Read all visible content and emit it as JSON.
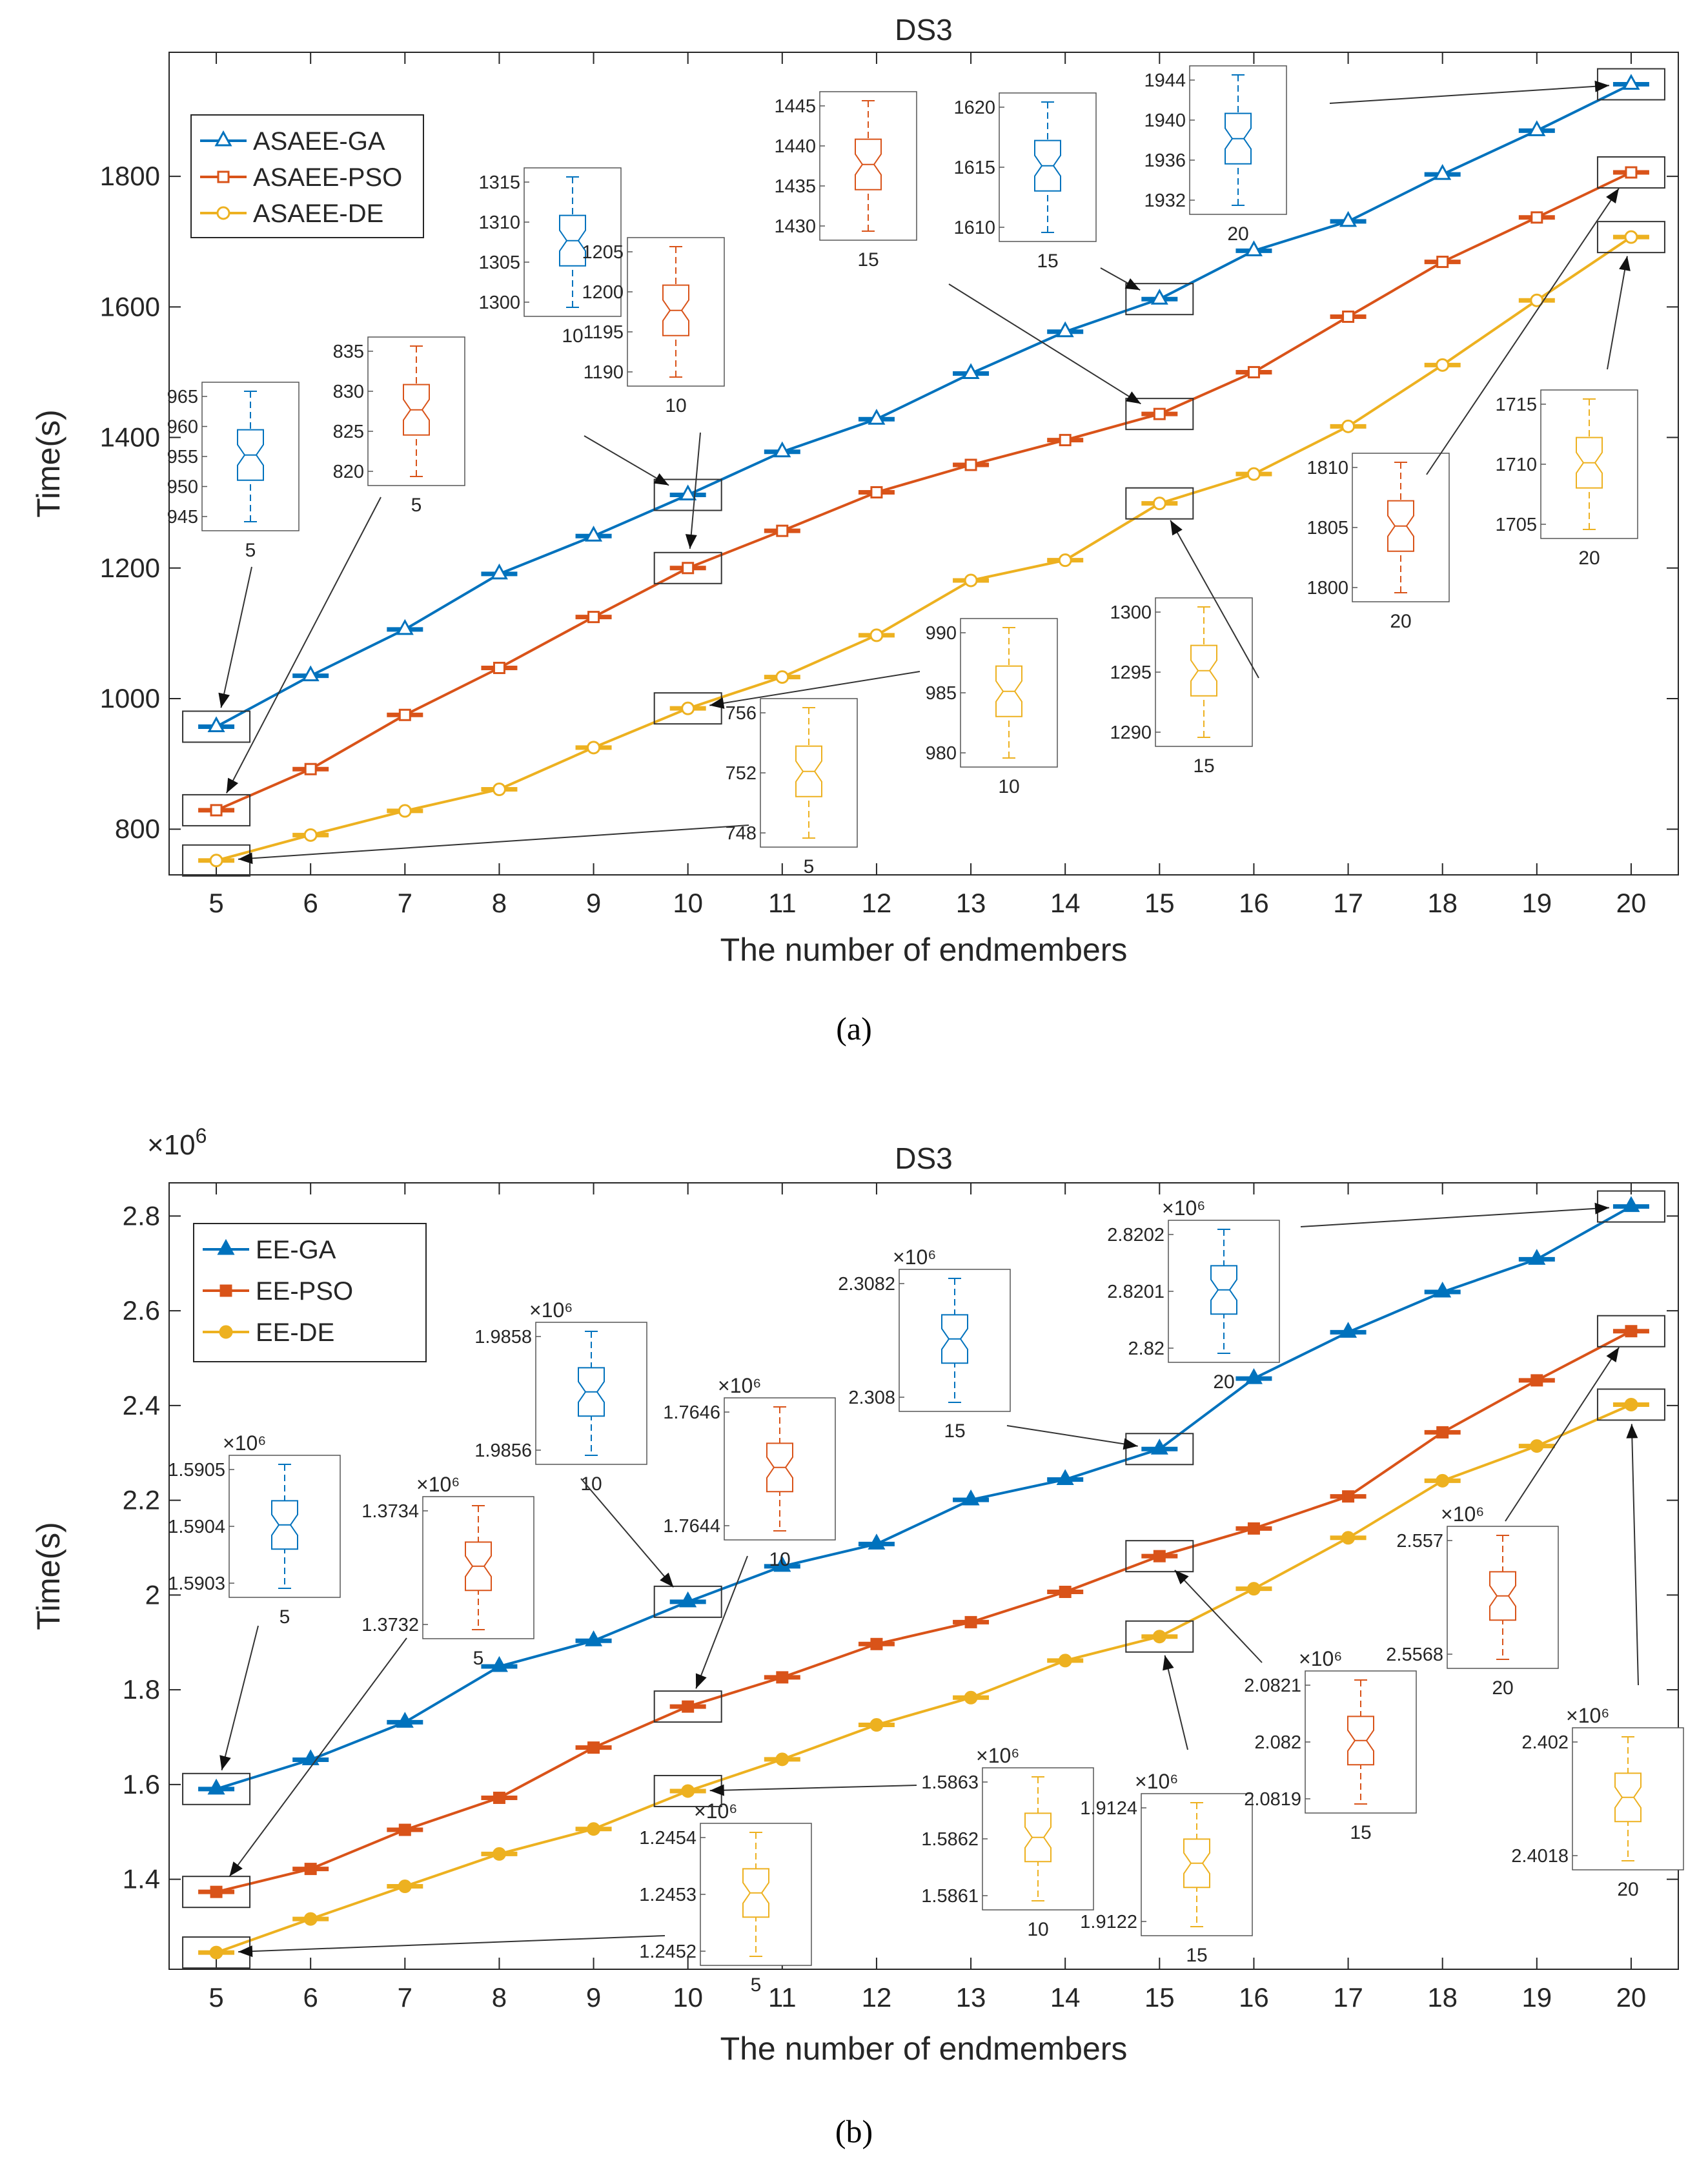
{
  "colors": {
    "s0": "#0072BD",
    "s1": "#D95319",
    "s2": "#EDB120",
    "axis": "#262626",
    "grid": "#DCDCDC"
  },
  "chart_data": [
    {
      "type": "line",
      "panel_label": "(a)",
      "title": "DS3",
      "xlabel": "The number of endmembers",
      "ylabel": "Time(s)",
      "exponent_label": "",
      "xlim": [
        4.5,
        20.5
      ],
      "ylim": [
        730,
        1990
      ],
      "yticks": [
        800,
        1000,
        1200,
        1400,
        1600,
        1800
      ],
      "ytick_labels": [
        "800",
        "1000",
        "1200",
        "1400",
        "1600",
        "1800"
      ],
      "x": [
        5,
        6,
        7,
        8,
        9,
        10,
        11,
        12,
        13,
        14,
        15,
        16,
        17,
        18,
        19,
        20
      ],
      "xtick_labels": [
        "5",
        "6",
        "7",
        "8",
        "9",
        "10",
        "11",
        "12",
        "13",
        "14",
        "15",
        "16",
        "17",
        "18",
        "19",
        "20"
      ],
      "legend_position": "top-left",
      "series": [
        {
          "name": "ASAEE-GA",
          "marker": "triangle",
          "values": [
            957,
            1035,
            1106,
            1191,
            1249,
            1312,
            1378,
            1428,
            1498,
            1562,
            1612,
            1686,
            1731,
            1803,
            1870,
            1941
          ]
        },
        {
          "name": "ASAEE-PSO",
          "marker": "square",
          "values": [
            829,
            892,
            975,
            1047,
            1125,
            1200,
            1257,
            1316,
            1358,
            1396,
            1436,
            1500,
            1585,
            1669,
            1737,
            1806
          ]
        },
        {
          "name": "ASAEE-DE",
          "marker": "circle",
          "values": [
            752,
            791,
            828,
            861,
            925,
            985,
            1033,
            1097,
            1181,
            1212,
            1299,
            1344,
            1417,
            1511,
            1610,
            1707
          ]
        }
      ],
      "insets": [
        {
          "series": 0,
          "x": 5,
          "label": "5",
          "ticks": [
            "965",
            "960",
            "955",
            "950",
            "945"
          ]
        },
        {
          "series": 1,
          "x": 5,
          "label": "5",
          "ticks": [
            "835",
            "830",
            "825",
            "820"
          ]
        },
        {
          "series": 0,
          "x": 10,
          "label": "10",
          "ticks": [
            "1315",
            "1310",
            "1305",
            "1300"
          ]
        },
        {
          "series": 1,
          "x": 10,
          "label": "10",
          "ticks": [
            "1205",
            "1200",
            "1195",
            "1190"
          ]
        },
        {
          "series": 1,
          "x": 15,
          "label": "15",
          "ticks": [
            "1445",
            "1440",
            "1435",
            "1430"
          ]
        },
        {
          "series": 0,
          "x": 15,
          "label": "15",
          "ticks": [
            "1620",
            "1615",
            "1610"
          ]
        },
        {
          "series": 0,
          "x": 20,
          "label": "20",
          "ticks": [
            "1944",
            "1940",
            "1936",
            "1932"
          ]
        },
        {
          "series": 2,
          "x": 10,
          "label": "10",
          "ticks": [
            "990",
            "985",
            "980"
          ]
        },
        {
          "series": 2,
          "x": 5,
          "label": "5",
          "ticks": [
            "756",
            "752",
            "748"
          ]
        },
        {
          "series": 2,
          "x": 15,
          "label": "15",
          "ticks": [
            "1300",
            "1295",
            "1290"
          ]
        },
        {
          "series": 1,
          "x": 20,
          "label": "20",
          "ticks": [
            "1810",
            "1805",
            "1800"
          ]
        },
        {
          "series": 2,
          "x": 20,
          "label": "20",
          "ticks": [
            "1715",
            "1710",
            "1705"
          ]
        }
      ]
    },
    {
      "type": "line",
      "panel_label": "(b)",
      "title": "DS3",
      "xlabel": "The number of endmembers",
      "ylabel": "Time(s)",
      "exponent_label": "×10^6",
      "xlim": [
        4.5,
        20.5
      ],
      "ylim": [
        1.21,
        2.87
      ],
      "yticks": [
        1.4,
        1.6,
        1.8,
        2.0,
        2.2,
        2.4,
        2.6,
        2.8
      ],
      "ytick_labels": [
        "1.4",
        "1.6",
        "1.8",
        "2",
        "2.2",
        "2.4",
        "2.6",
        "2.8"
      ],
      "x": [
        5,
        6,
        7,
        8,
        9,
        10,
        11,
        12,
        13,
        14,
        15,
        16,
        17,
        18,
        19,
        20
      ],
      "xtick_labels": [
        "5",
        "6",
        "7",
        "8",
        "9",
        "10",
        "11",
        "12",
        "13",
        "14",
        "15",
        "16",
        "17",
        "18",
        "19",
        "20"
      ],
      "legend_position": "top-left",
      "series": [
        {
          "name": "EE-GA",
          "marker": "triangle",
          "values": [
            1.5905,
            1.6523,
            1.7315,
            1.8492,
            1.9034,
            1.9857,
            2.0606,
            2.1076,
            2.2009,
            2.2438,
            2.3081,
            2.4569,
            2.5547,
            2.6396,
            2.7086,
            2.8201
          ]
        },
        {
          "name": "EE-PSO",
          "marker": "square",
          "values": [
            1.3733,
            1.4218,
            1.5043,
            1.5719,
            1.6779,
            1.7645,
            1.8262,
            1.8965,
            1.9427,
            2.0066,
            2.082,
            2.1404,
            2.2081,
            2.3434,
            2.4531,
            2.5569
          ]
        },
        {
          "name": "EE-DE",
          "marker": "circle",
          "values": [
            1.2453,
            1.3162,
            1.3851,
            1.4534,
            1.5061,
            1.5862,
            1.6531,
            1.7258,
            1.7834,
            1.8616,
            1.9123,
            2.0132,
            2.1207,
            2.2412,
            2.3145,
            2.4019
          ]
        }
      ],
      "insets": [
        {
          "series": 0,
          "x": 5,
          "label": "5",
          "ticks": [
            "1.5905",
            "1.5904",
            "1.5903"
          ]
        },
        {
          "series": 1,
          "x": 5,
          "label": "5",
          "ticks": [
            "1.3734",
            "1.3732"
          ]
        },
        {
          "series": 0,
          "x": 10,
          "label": "10",
          "ticks": [
            "1.9858",
            "1.9856"
          ]
        },
        {
          "series": 1,
          "x": 10,
          "label": "10",
          "ticks": [
            "1.7646",
            "1.7644"
          ]
        },
        {
          "series": 0,
          "x": 15,
          "label": "15",
          "ticks": [
            "2.3082",
            "2.308"
          ]
        },
        {
          "series": 0,
          "x": 20,
          "label": "20",
          "ticks": [
            "2.8202",
            "2.8201",
            "2.82"
          ]
        },
        {
          "series": 2,
          "x": 5,
          "label": "5",
          "ticks": [
            "1.2454",
            "1.2453",
            "1.2452"
          ]
        },
        {
          "series": 2,
          "x": 10,
          "label": "10",
          "ticks": [
            "1.5863",
            "1.5862",
            "1.5861"
          ]
        },
        {
          "series": 2,
          "x": 15,
          "label": "15",
          "ticks": [
            "1.9124",
            "1.9122"
          ]
        },
        {
          "series": 1,
          "x": 15,
          "label": "15",
          "ticks": [
            "2.0821",
            "2.082",
            "2.0819"
          ]
        },
        {
          "series": 1,
          "x": 20,
          "label": "20",
          "ticks": [
            "2.557",
            "2.5568"
          ]
        },
        {
          "series": 2,
          "x": 20,
          "label": "20",
          "ticks": [
            "2.402",
            "2.4018"
          ]
        }
      ]
    }
  ]
}
